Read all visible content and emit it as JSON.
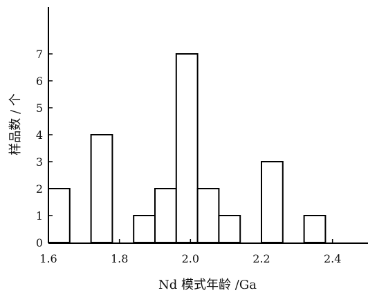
{
  "chart_data": {
    "type": "bar",
    "title": "",
    "xlabel": "Nd 模式年龄 /Ga",
    "ylabel": "样品数 / 个",
    "xlim": [
      1.6,
      2.5
    ],
    "ylim": [
      0,
      8
    ],
    "xticks": [
      "1.6",
      "1.8",
      "2.0",
      "2.2",
      "2.4"
    ],
    "yticks": [
      "0",
      "1",
      "2",
      "3",
      "4",
      "5",
      "6",
      "7"
    ],
    "bins": [
      {
        "x0": 1.6,
        "x1": 1.66,
        "value": 2
      },
      {
        "x0": 1.72,
        "x1": 1.78,
        "value": 4
      },
      {
        "x0": 1.84,
        "x1": 1.9,
        "value": 1
      },
      {
        "x0": 1.9,
        "x1": 1.96,
        "value": 2
      },
      {
        "x0": 1.96,
        "x1": 2.02,
        "value": 7
      },
      {
        "x0": 2.02,
        "x1": 2.08,
        "value": 2
      },
      {
        "x0": 2.08,
        "x1": 2.14,
        "value": 1
      },
      {
        "x0": 2.2,
        "x1": 2.26,
        "value": 3
      },
      {
        "x0": 2.32,
        "x1": 2.38,
        "value": 1
      }
    ],
    "grid": false,
    "legend": "none"
  }
}
